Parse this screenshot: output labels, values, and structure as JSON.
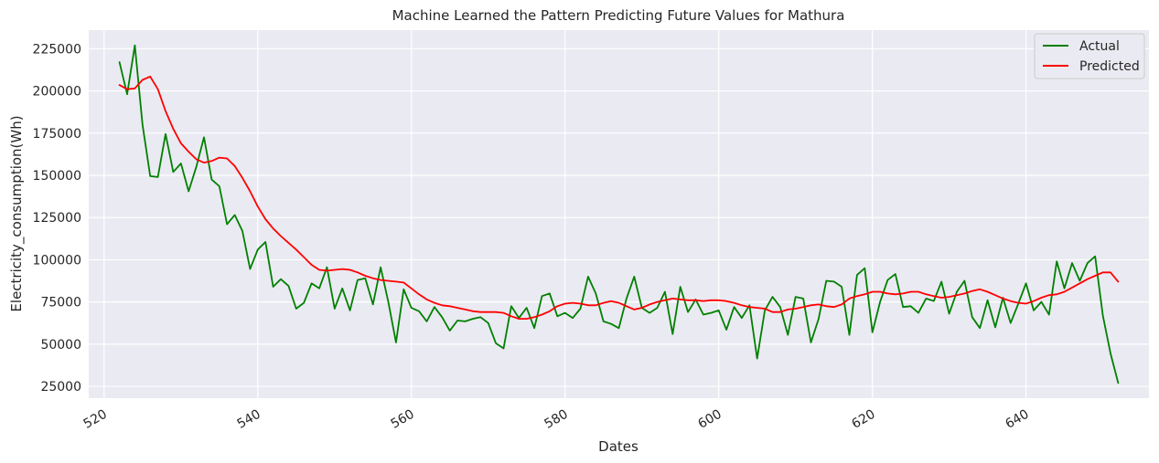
{
  "chart_data": {
    "type": "line",
    "title": "Machine Learned the Pattern Predicting Future Values for Mathura",
    "xlabel": "Dates",
    "ylabel": "Electricity_consumption(Wh)",
    "xlim": [
      518,
      656
    ],
    "ylim": [
      18000,
      236000
    ],
    "xticks": [
      520,
      540,
      560,
      580,
      600,
      620,
      640
    ],
    "yticks": [
      25000,
      50000,
      75000,
      100000,
      125000,
      150000,
      175000,
      200000,
      225000
    ],
    "grid": true,
    "legend_position": "top-right",
    "colors": {
      "background": "#eaeaf2",
      "grid": "#ffffff",
      "actual": "#008000",
      "predicted": "#ff0000"
    },
    "series": [
      {
        "name": "Actual",
        "color": "#008000",
        "x": [
          522,
          523,
          524,
          525,
          526,
          527,
          528,
          529,
          530,
          531,
          532,
          533,
          534,
          535,
          536,
          537,
          538,
          539,
          540,
          541,
          542,
          543,
          544,
          545,
          546,
          547,
          548,
          549,
          550,
          551,
          552,
          553,
          554,
          555,
          556,
          557,
          558,
          559,
          560,
          561,
          562,
          563,
          564,
          565,
          566,
          567,
          568,
          569,
          570,
          571,
          572,
          573,
          574,
          575,
          576,
          577,
          578,
          579,
          580,
          581,
          582,
          583,
          584,
          585,
          586,
          587,
          588,
          589,
          590,
          591,
          592,
          593,
          594,
          595,
          596,
          597,
          598,
          599,
          600,
          601,
          602,
          603,
          604,
          605,
          606,
          607,
          608,
          609,
          610,
          611,
          612,
          613,
          614,
          615,
          616,
          617,
          618,
          619,
          620,
          621,
          622,
          623,
          624,
          625,
          626,
          627,
          628,
          629,
          630,
          631,
          632,
          633,
          634,
          635,
          636,
          637,
          638,
          639,
          640,
          641,
          642,
          643,
          644,
          645,
          646,
          647,
          648,
          649,
          650,
          651,
          652
        ],
        "values": [
          217000,
          198000,
          227000,
          180000,
          149500,
          149000,
          174500,
          152000,
          157000,
          140500,
          155000,
          172500,
          147500,
          143500,
          121000,
          126500,
          117000,
          94500,
          106000,
          110500,
          84000,
          88500,
          84500,
          71000,
          74500,
          86000,
          83000,
          95500,
          71000,
          83000,
          70000,
          88000,
          89000,
          73500,
          95500,
          75000,
          51000,
          82500,
          71500,
          69500,
          63500,
          72000,
          66000,
          58000,
          64000,
          63500,
          65000,
          66000,
          62500,
          50500,
          47500,
          72500,
          65500,
          71500,
          59500,
          78500,
          80000,
          66500,
          68500,
          65500,
          71000,
          90000,
          80000,
          63500,
          62000,
          59500,
          77000,
          90000,
          71500,
          68500,
          71500,
          81000,
          56000,
          84000,
          69000,
          76500,
          67500,
          68500,
          70000,
          58500,
          72000,
          65500,
          73000,
          41500,
          70000,
          78000,
          72000,
          55500,
          78000,
          77000,
          51000,
          65000,
          87500,
          87000,
          84000,
          55500,
          91000,
          95000,
          57000,
          75000,
          88000,
          91500,
          72000,
          72500,
          68500,
          77000,
          75500,
          87000,
          68000,
          81000,
          87500,
          66000,
          59500,
          76000,
          60000,
          77500,
          62500,
          74000,
          86000,
          70000,
          75000,
          67500,
          99000,
          83000,
          98000,
          87500,
          98000,
          102000,
          67000,
          44500,
          27000
        ]
      },
      {
        "name": "Predicted",
        "color": "#ff0000",
        "x": [
          522,
          523,
          524,
          525,
          526,
          527,
          528,
          529,
          530,
          531,
          532,
          533,
          534,
          535,
          536,
          537,
          538,
          539,
          540,
          541,
          542,
          543,
          544,
          545,
          546,
          547,
          548,
          549,
          550,
          551,
          552,
          553,
          554,
          555,
          556,
          557,
          558,
          559,
          560,
          561,
          562,
          563,
          564,
          565,
          566,
          567,
          568,
          569,
          570,
          571,
          572,
          573,
          574,
          575,
          576,
          577,
          578,
          579,
          580,
          581,
          582,
          583,
          584,
          585,
          586,
          587,
          588,
          589,
          590,
          591,
          592,
          593,
          594,
          595,
          596,
          597,
          598,
          599,
          600,
          601,
          602,
          603,
          604,
          605,
          606,
          607,
          608,
          609,
          610,
          611,
          612,
          613,
          614,
          615,
          616,
          617,
          618,
          619,
          620,
          621,
          622,
          623,
          624,
          625,
          626,
          627,
          628,
          629,
          630,
          631,
          632,
          633,
          634,
          635,
          636,
          637,
          638,
          639,
          640,
          641,
          642,
          643,
          644,
          645,
          646,
          647,
          648,
          649,
          650,
          651,
          652
        ],
        "values": [
          203500,
          201000,
          201500,
          206500,
          208500,
          201000,
          188000,
          177500,
          169000,
          164000,
          159500,
          157500,
          158500,
          160500,
          160000,
          155500,
          148500,
          140500,
          131500,
          124000,
          118500,
          114000,
          110000,
          106000,
          101500,
          97000,
          94000,
          93500,
          94000,
          94500,
          94000,
          92500,
          90500,
          89000,
          88000,
          87500,
          87000,
          86500,
          83000,
          79500,
          76500,
          74500,
          73000,
          72500,
          71500,
          70500,
          69500,
          69000,
          69000,
          69000,
          68500,
          66500,
          65000,
          65000,
          66000,
          67500,
          69500,
          72500,
          74000,
          74500,
          74000,
          73000,
          73000,
          74500,
          75500,
          74500,
          72500,
          70500,
          71500,
          73500,
          75000,
          76000,
          77000,
          76500,
          76000,
          76000,
          75500,
          76000,
          76000,
          75500,
          74500,
          73000,
          72000,
          71500,
          71000,
          69000,
          69000,
          70500,
          71000,
          72000,
          73000,
          73500,
          72500,
          72000,
          73500,
          77000,
          78500,
          79500,
          81000,
          81000,
          80000,
          79500,
          80000,
          81000,
          81000,
          79500,
          78500,
          77500,
          78000,
          79000,
          80000,
          81500,
          82500,
          81000,
          79000,
          77000,
          75500,
          74500,
          74000,
          75500,
          77500,
          79000,
          79500,
          81000,
          83500,
          86000,
          88500,
          90500,
          92500,
          92500,
          87000
        ]
      }
    ]
  }
}
